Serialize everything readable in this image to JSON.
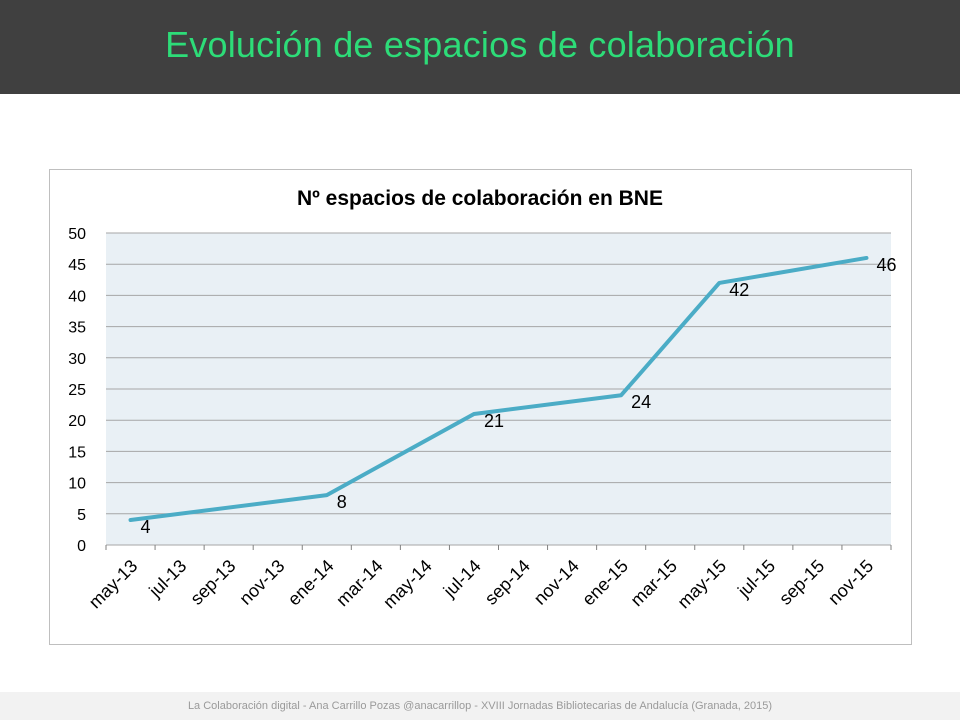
{
  "slide": {
    "title": "Evolución de espacios de colaboración",
    "footer": "La Colaboración digital  -  Ana Carrillo Pozas  @anacarrillop  -   XVIII Jornadas Bibliotecarias de Andalucía (Granada, 2015)"
  },
  "colors": {
    "title": "#2ddc78",
    "header_bg": "#404040",
    "plot_bg": "#e9f0f5",
    "line": "#4bacc6",
    "grid": "#a6a6a6"
  },
  "chart_data": {
    "type": "line",
    "title": "Nº espacios de colaboración en BNE",
    "xlabel": "",
    "ylabel": "",
    "categories": [
      "may-13",
      "jul-13",
      "sep-13",
      "nov-13",
      "ene-14",
      "mar-14",
      "may-14",
      "jul-14",
      "sep-14",
      "nov-14",
      "ene-15",
      "mar-15",
      "may-15",
      "jul-15",
      "sep-15",
      "nov-15"
    ],
    "y_ticks": [
      0,
      5,
      10,
      15,
      20,
      25,
      30,
      35,
      40,
      45,
      50
    ],
    "ylim": [
      0,
      50
    ],
    "grid": true,
    "legend": "none",
    "series": [
      {
        "points": [
          {
            "x": "may-13",
            "y": 4
          },
          {
            "x": "ene-14",
            "y": 8
          },
          {
            "x": "jul-14",
            "y": 21
          },
          {
            "x": "ene-15",
            "y": 24
          },
          {
            "x": "may-15",
            "y": 42
          },
          {
            "x": "nov-15",
            "y": 46
          }
        ]
      }
    ],
    "data_labels": [
      "4",
      "8",
      "21",
      "24",
      "42",
      "46"
    ]
  }
}
